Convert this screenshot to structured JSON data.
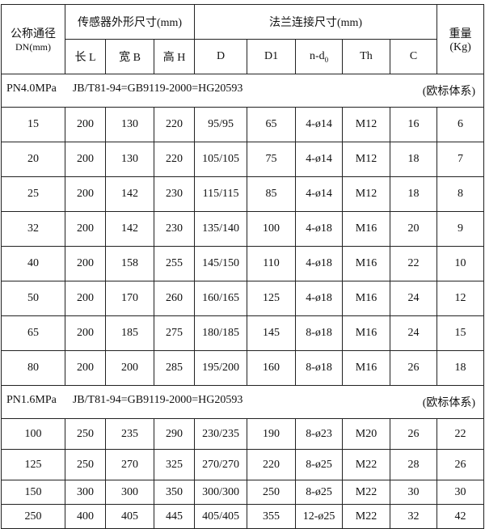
{
  "header": {
    "dn": "公称通径",
    "dn_unit": "DN(mm)",
    "sensor": "传感器外形尺寸(mm)",
    "flange": "法兰连接尺寸(mm)",
    "weight": "重量",
    "weight_unit": "(Kg)",
    "cols": {
      "L": "长 L",
      "B": "宽 B",
      "H": "高 H",
      "D": "D",
      "D1": "D1",
      "nd": "n-d",
      "nd_sub": "0",
      "Th": "Th",
      "C": "C"
    }
  },
  "sections": [
    {
      "pressure": "PN4.0MPa",
      "standard": "JB/T81-94=GB9119-2000=HG20593",
      "system": "(欧标体系)",
      "rows": [
        [
          "15",
          "200",
          "130",
          "220",
          "95/95",
          "65",
          "4-ø14",
          "M12",
          "16",
          "6"
        ],
        [
          "20",
          "200",
          "130",
          "220",
          "105/105",
          "75",
          "4-ø14",
          "M12",
          "18",
          "7"
        ],
        [
          "25",
          "200",
          "142",
          "230",
          "115/115",
          "85",
          "4-ø14",
          "M12",
          "18",
          "8"
        ],
        [
          "32",
          "200",
          "142",
          "230",
          "135/140",
          "100",
          "4-ø18",
          "M16",
          "20",
          "9"
        ],
        [
          "40",
          "200",
          "158",
          "255",
          "145/150",
          "110",
          "4-ø18",
          "M16",
          "22",
          "10"
        ],
        [
          "50",
          "200",
          "170",
          "260",
          "160/165",
          "125",
          "4-ø18",
          "M16",
          "24",
          "12"
        ],
        [
          "65",
          "200",
          "185",
          "275",
          "180/185",
          "145",
          "8-ø18",
          "M16",
          "24",
          "15"
        ],
        [
          "80",
          "200",
          "200",
          "285",
          "195/200",
          "160",
          "8-ø18",
          "M16",
          "26",
          "18"
        ]
      ]
    },
    {
      "pressure": "PN1.6MPa",
      "standard": "JB/T81-94=GB9119-2000=HG20593",
      "system": "(欧标体系)",
      "rows": [
        [
          "100",
          "250",
          "235",
          "290",
          "230/235",
          "190",
          "8-ø23",
          "M20",
          "26",
          "22"
        ],
        [
          "125",
          "250",
          "270",
          "325",
          "270/270",
          "220",
          "8-ø25",
          "M22",
          "28",
          "26"
        ],
        [
          "150",
          "300",
          "300",
          "350",
          "300/300",
          "250",
          "8-ø25",
          "M22",
          "30",
          "30"
        ],
        [
          "250",
          "400",
          "405",
          "445",
          "405/405",
          "355",
          "12-ø25",
          "M22",
          "32",
          "42"
        ]
      ]
    }
  ]
}
